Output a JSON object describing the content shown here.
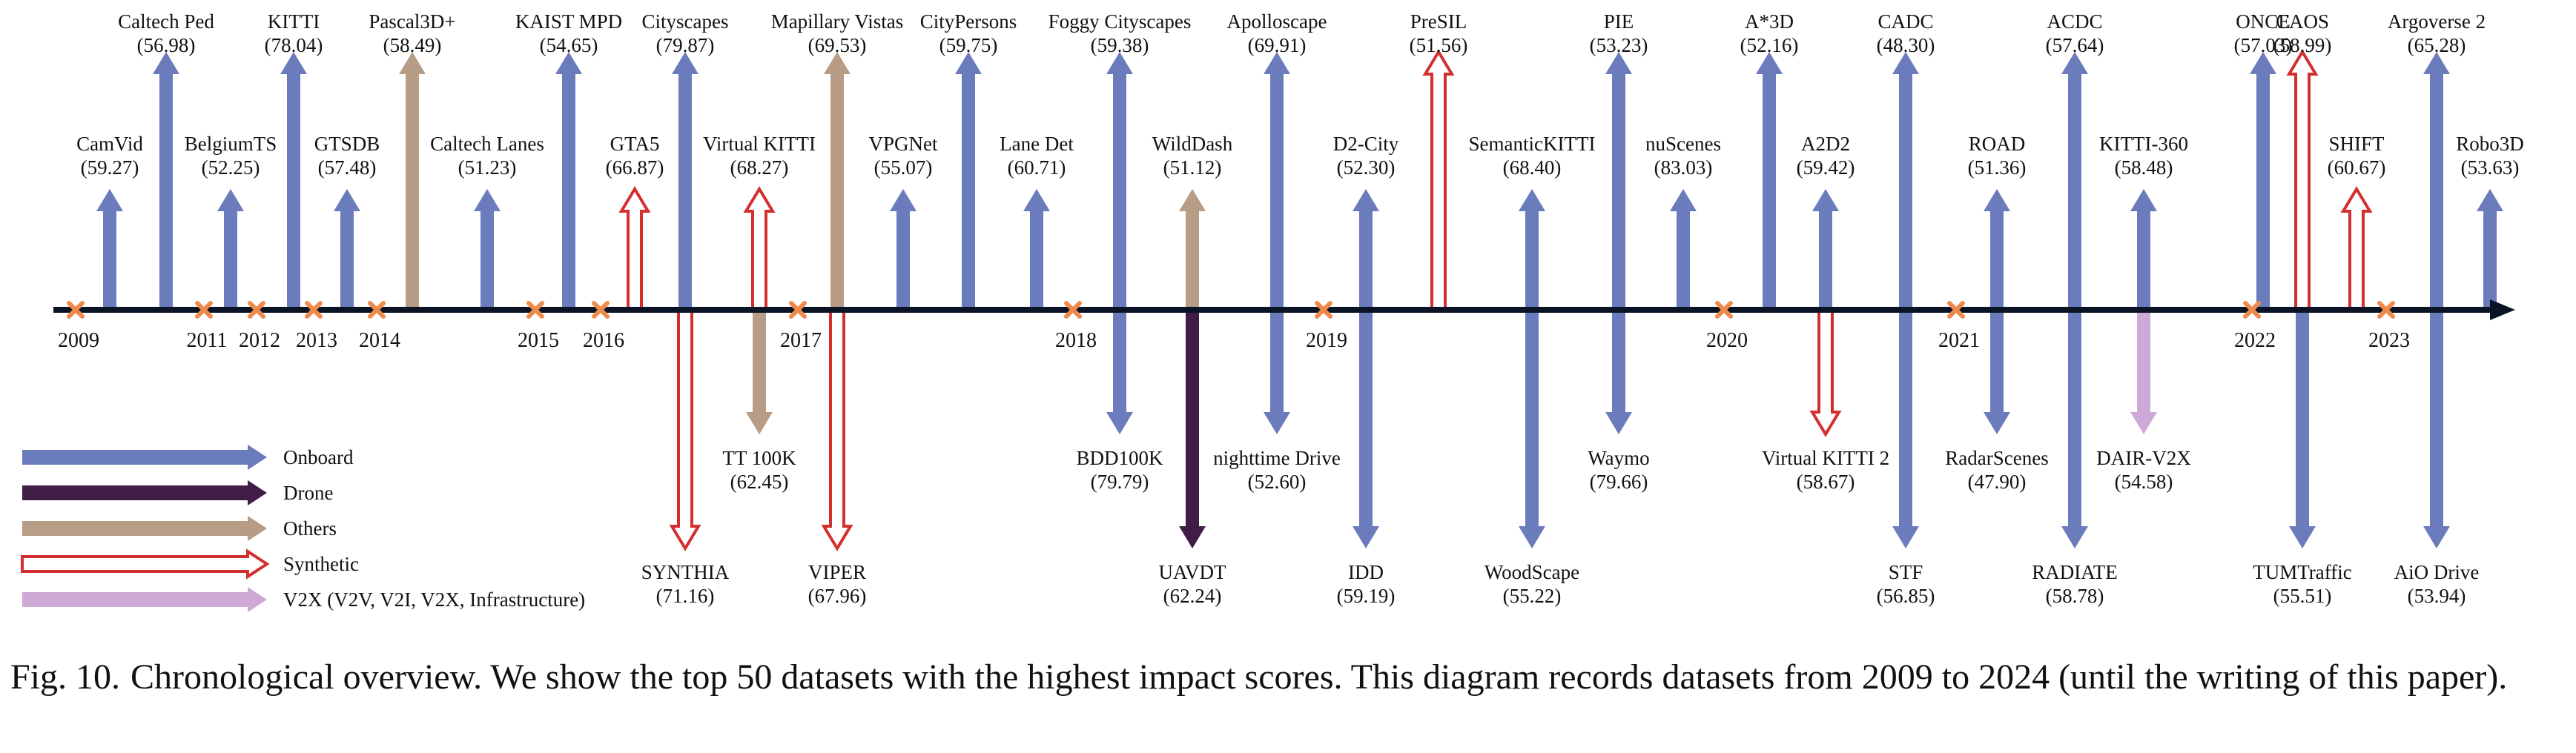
{
  "colors": {
    "onboard": "#6b7cbd",
    "drone": "#3f1d45",
    "others": "#b89d86",
    "synthetic": "#d42f2f",
    "v2x": "#cfa9d6",
    "axis": "#0b1424",
    "year_marker": "#f08a4b"
  },
  "diagram": {
    "legend": [
      {
        "category": "onboard",
        "label": "Onboard"
      },
      {
        "category": "drone",
        "label": "Drone"
      },
      {
        "category": "others",
        "label": "Others"
      },
      {
        "category": "synthetic",
        "label": "Synthetic"
      },
      {
        "category": "v2x",
        "label": "V2X (V2V, V2I, V2X, Infrastructure)"
      }
    ],
    "years": [
      "2009",
      "2011",
      "2012",
      "2013",
      "2014",
      "2015",
      "2016",
      "2017",
      "2018",
      "2019",
      "2020",
      "2021",
      "2022",
      "2023"
    ],
    "datasets": [
      {
        "name": "CamVid",
        "score": "(59.27)",
        "category": "onboard",
        "direction": "up"
      },
      {
        "name": "Caltech Ped",
        "score": "(56.98)",
        "category": "onboard",
        "direction": "up"
      },
      {
        "name": "BelgiumTS",
        "score": "(52.25)",
        "category": "onboard",
        "direction": "up"
      },
      {
        "name": "KITTI",
        "score": "(78.04)",
        "category": "onboard",
        "direction": "up"
      },
      {
        "name": "GTSDB",
        "score": "(57.48)",
        "category": "onboard",
        "direction": "up"
      },
      {
        "name": "Pascal3D+",
        "score": "(58.49)",
        "category": "others",
        "direction": "up"
      },
      {
        "name": "Caltech Lanes",
        "score": "(51.23)",
        "category": "onboard",
        "direction": "up"
      },
      {
        "name": "KAIST MPD",
        "score": "(54.65)",
        "category": "onboard",
        "direction": "up"
      },
      {
        "name": "GTA5",
        "score": "(66.87)",
        "category": "synthetic",
        "direction": "up"
      },
      {
        "name": "Cityscapes",
        "score": "(79.87)",
        "category": "onboard",
        "direction": "up"
      },
      {
        "name": "SYNTHIA",
        "score": "(71.16)",
        "category": "synthetic",
        "direction": "down"
      },
      {
        "name": "Virtual KITTI",
        "score": "(68.27)",
        "category": "synthetic",
        "direction": "up"
      },
      {
        "name": "TT 100K",
        "score": "(62.45)",
        "category": "others",
        "direction": "down"
      },
      {
        "name": "Mapillary Vistas",
        "score": "(69.53)",
        "category": "others",
        "direction": "up"
      },
      {
        "name": "VIPER",
        "score": "(67.96)",
        "category": "synthetic",
        "direction": "down"
      },
      {
        "name": "VPGNet",
        "score": "(55.07)",
        "category": "onboard",
        "direction": "up"
      },
      {
        "name": "CityPersons",
        "score": "(59.75)",
        "category": "onboard",
        "direction": "up"
      },
      {
        "name": "Lane Det",
        "score": "(60.71)",
        "category": "onboard",
        "direction": "up"
      },
      {
        "name": "Foggy Cityscapes",
        "score": "(59.38)",
        "category": "onboard",
        "direction": "up"
      },
      {
        "name": "BDD100K",
        "score": "(79.79)",
        "category": "onboard",
        "direction": "down"
      },
      {
        "name": "WildDash",
        "score": "(51.12)",
        "category": "others",
        "direction": "up"
      },
      {
        "name": "UAVDT",
        "score": "(62.24)",
        "category": "drone",
        "direction": "down"
      },
      {
        "name": "Apolloscape",
        "score": "(69.91)",
        "category": "onboard",
        "direction": "up"
      },
      {
        "name": "nighttime Drive",
        "score": "(52.60)",
        "category": "onboard",
        "direction": "down"
      },
      {
        "name": "D2-City",
        "score": "(52.30)",
        "category": "onboard",
        "direction": "up"
      },
      {
        "name": "IDD",
        "score": "(59.19)",
        "category": "onboard",
        "direction": "down"
      },
      {
        "name": "PreSIL",
        "score": "(51.56)",
        "category": "synthetic",
        "direction": "up"
      },
      {
        "name": "SemanticKITTI",
        "score": "(68.40)",
        "category": "onboard",
        "direction": "up"
      },
      {
        "name": "WoodScape",
        "score": "(55.22)",
        "category": "onboard",
        "direction": "down"
      },
      {
        "name": "PIE",
        "score": "(53.23)",
        "category": "onboard",
        "direction": "up"
      },
      {
        "name": "Waymo",
        "score": "(79.66)",
        "category": "onboard",
        "direction": "down"
      },
      {
        "name": "nuScenes",
        "score": "(83.03)",
        "category": "onboard",
        "direction": "up"
      },
      {
        "name": "A*3D",
        "score": "(52.16)",
        "category": "onboard",
        "direction": "up"
      },
      {
        "name": "A2D2",
        "score": "(59.42)",
        "category": "onboard",
        "direction": "up"
      },
      {
        "name": "Virtual KITTI 2",
        "score": "(58.67)",
        "category": "synthetic",
        "direction": "down"
      },
      {
        "name": "CADC",
        "score": "(48.30)",
        "category": "onboard",
        "direction": "up"
      },
      {
        "name": "STF",
        "score": "(56.85)",
        "category": "onboard",
        "direction": "down"
      },
      {
        "name": "ROAD",
        "score": "(51.36)",
        "category": "onboard",
        "direction": "up"
      },
      {
        "name": "RadarScenes",
        "score": "(47.90)",
        "category": "onboard",
        "direction": "down"
      },
      {
        "name": "ACDC",
        "score": "(57.64)",
        "category": "onboard",
        "direction": "up"
      },
      {
        "name": "RADIATE",
        "score": "(58.78)",
        "category": "onboard",
        "direction": "down"
      },
      {
        "name": "KITTI-360",
        "score": "(58.48)",
        "category": "onboard",
        "direction": "up"
      },
      {
        "name": "DAIR-V2X",
        "score": "(54.58)",
        "category": "v2x",
        "direction": "down"
      },
      {
        "name": "ONCE",
        "score": "(57.03)",
        "category": "onboard",
        "direction": "up"
      },
      {
        "name": "CAOS",
        "score": "(58.99)",
        "category": "synthetic",
        "direction": "up"
      },
      {
        "name": "TUMTraffic",
        "score": "(55.51)",
        "category": "onboard",
        "direction": "down"
      },
      {
        "name": "SHIFT",
        "score": "(60.67)",
        "category": "synthetic",
        "direction": "up"
      },
      {
        "name": "Argoverse 2",
        "score": "(65.28)",
        "category": "onboard",
        "direction": "up"
      },
      {
        "name": "AiO Drive",
        "score": "(53.94)",
        "category": "onboard",
        "direction": "down"
      },
      {
        "name": "Robo3D",
        "score": "(53.63)",
        "category": "onboard",
        "direction": "up"
      }
    ]
  },
  "caption": {
    "label": "Fig. 10.",
    "text": "Chronological overview. We show the top 50 datasets with the highest impact scores. This diagram records datasets from 2009 to 2024 (until the writing of this paper)."
  }
}
